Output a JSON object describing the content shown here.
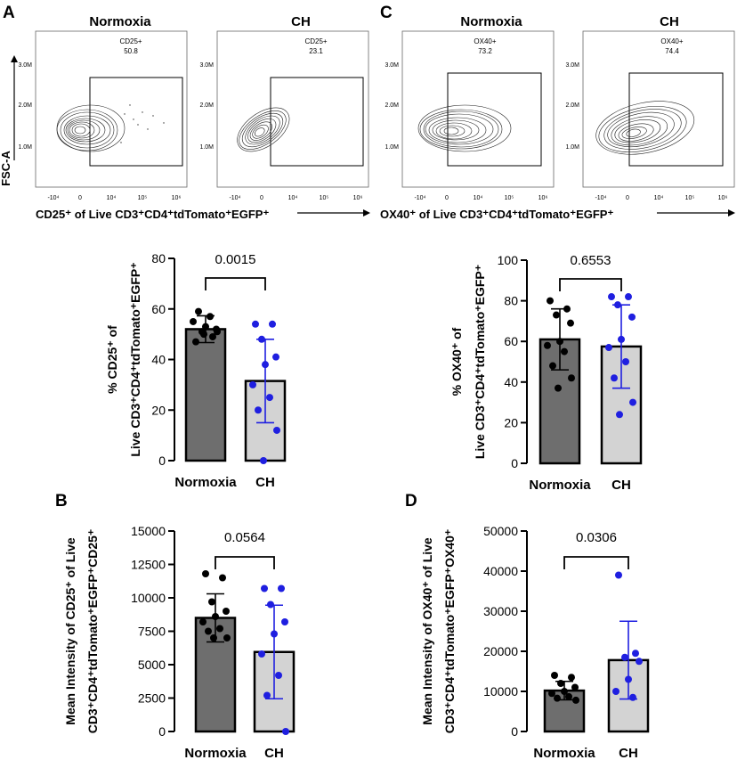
{
  "panels": {
    "A": "A",
    "B": "B",
    "C": "C",
    "D": "D"
  },
  "flow": {
    "A": {
      "plots": [
        {
          "title": "Normoxia",
          "gate_name": "CD25+",
          "gate_value": "50.8"
        },
        {
          "title": "CH",
          "gate_name": "CD25+",
          "gate_value": "23.1"
        }
      ],
      "y_axis_label": "FSC-A",
      "x_axis_label": "CD25⁺ of Live CD3⁺CD4⁺tdTomato⁺EGFP⁺",
      "y_ticks": [
        "3.0M",
        "2.0M",
        "1.0M"
      ],
      "x_ticks": [
        "-10⁴",
        "0",
        "10⁴",
        "10⁵",
        "10⁶"
      ]
    },
    "C": {
      "plots": [
        {
          "title": "Normoxia",
          "gate_name": "OX40+",
          "gate_value": "73.2"
        },
        {
          "title": "CH",
          "gate_name": "OX40+",
          "gate_value": "74.4"
        }
      ],
      "y_axis_label": "",
      "x_axis_label": "OX40⁺ of Live CD3⁺CD4⁺tdTomato⁺EGFP⁺",
      "y_ticks": [
        "3.0M",
        "2.0M",
        "1.0M"
      ],
      "x_ticks": [
        "-10⁴",
        "0",
        "10⁴",
        "10⁵",
        "10⁶"
      ]
    }
  },
  "chart_data": [
    {
      "id": "A-bar",
      "type": "bar",
      "categories": [
        "Normoxia",
        "CH"
      ],
      "ylabel_line1": "% CD25⁺ of",
      "ylabel_line2": "Live CD3⁺CD4⁺tdTomato⁺EGFP⁺",
      "ylim": [
        0,
        80
      ],
      "yticks": [
        0,
        20,
        40,
        60,
        80
      ],
      "ytick_labels": [
        "0",
        "20",
        "40",
        "60",
        "80"
      ],
      "means": [
        52,
        31.5
      ],
      "sd": [
        5.3,
        16.5
      ],
      "points": [
        [
          47,
          49,
          51,
          52,
          53,
          55,
          57,
          59,
          51,
          50
        ],
        [
          54,
          54,
          48,
          41,
          38,
          30,
          25,
          20,
          12,
          0
        ]
      ],
      "bar_colors": [
        "#6e6e6e",
        "#d3d3d3"
      ],
      "point_colors": [
        "#000000",
        "#1f1fe0"
      ],
      "p_value": "0.0015"
    },
    {
      "id": "C-bar",
      "type": "bar",
      "categories": [
        "Normoxia",
        "CH"
      ],
      "ylabel_line1": "% OX40⁺ of",
      "ylabel_line2": "Live CD3⁺CD4⁺tdTomato⁺EGFP⁺",
      "ylim": [
        0,
        100
      ],
      "yticks": [
        0,
        20,
        40,
        60,
        80,
        100
      ],
      "ytick_labels": [
        "0",
        "20",
        "40",
        "60",
        "80",
        "100"
      ],
      "means": [
        61,
        57.5
      ],
      "sd": [
        15,
        20.5
      ],
      "points": [
        [
          80,
          76,
          73,
          69,
          60,
          58,
          55,
          48,
          42,
          37
        ],
        [
          82,
          82,
          78,
          72,
          61,
          57,
          50,
          42,
          30,
          24
        ]
      ],
      "bar_colors": [
        "#6e6e6e",
        "#d3d3d3"
      ],
      "point_colors": [
        "#000000",
        "#1f1fe0"
      ],
      "p_value": "0.6553"
    },
    {
      "id": "B-bar",
      "type": "bar",
      "categories": [
        "Normoxia",
        "CH"
      ],
      "ylabel_line1": "Mean Intensity of CD25⁺ of Live",
      "ylabel_line2": "CD3⁺CD4⁺tdTomato⁺EGFP⁺CD25⁺",
      "ylim": [
        0,
        15000
      ],
      "yticks": [
        0,
        2500,
        5000,
        7500,
        10000,
        12500,
        15000
      ],
      "ytick_labels": [
        "0",
        "2500",
        "5000",
        "7500",
        "10000",
        "12500",
        "15000"
      ],
      "means": [
        8500,
        5950
      ],
      "sd": [
        1800,
        3500
      ],
      "points": [
        [
          11800,
          11500,
          9700,
          9000,
          8600,
          8200,
          7700,
          7500,
          7000,
          7000
        ],
        [
          10700,
          10700,
          9500,
          8200,
          7300,
          5800,
          4200,
          2700,
          0
        ]
      ],
      "bar_colors": [
        "#6e6e6e",
        "#d3d3d3"
      ],
      "point_colors": [
        "#000000",
        "#1f1fe0"
      ],
      "p_value": "0.0564"
    },
    {
      "id": "D-bar",
      "type": "bar",
      "categories": [
        "Normoxia",
        "CH"
      ],
      "ylabel_line1": "Mean Intensity of OX40⁺ of Live",
      "ylabel_line2": "CD3⁺CD4⁺tdTomato⁺EGFP⁺OX40⁺",
      "ylim": [
        0,
        50000
      ],
      "yticks": [
        0,
        10000,
        20000,
        30000,
        40000,
        50000
      ],
      "ytick_labels": [
        "0",
        "10000",
        "20000",
        "30000",
        "40000",
        "50000"
      ],
      "means": [
        10200,
        17800
      ],
      "sd": [
        2300,
        9700
      ],
      "points": [
        [
          14000,
          13500,
          12000,
          11000,
          10000,
          9500,
          8700,
          8300,
          7800
        ],
        [
          39000,
          19500,
          18500,
          17500,
          13000,
          10000,
          8500
        ]
      ],
      "bar_colors": [
        "#6e6e6e",
        "#d3d3d3"
      ],
      "point_colors": [
        "#000000",
        "#1f1fe0"
      ],
      "p_value": "0.0306"
    }
  ]
}
